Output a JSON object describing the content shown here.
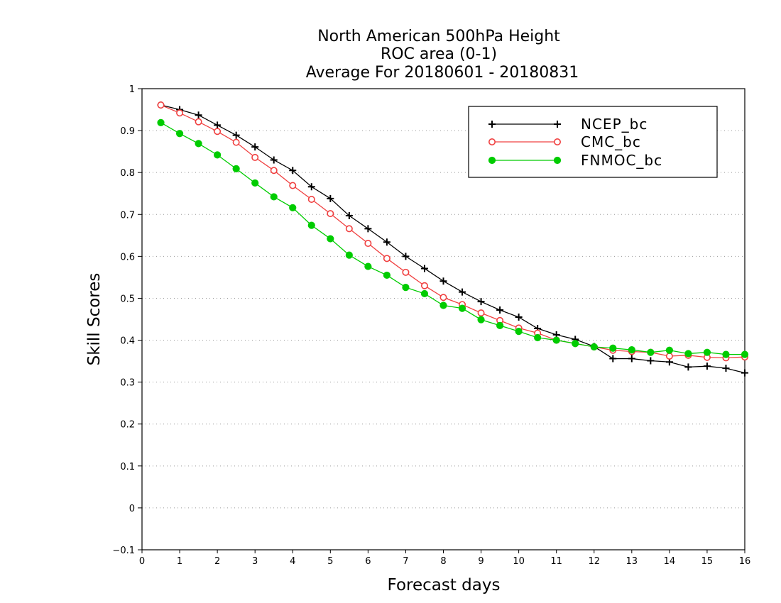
{
  "chart_data": {
    "type": "line",
    "title": [
      "North American 500hPa Height",
      "ROC area (0-1)",
      "Average For 20180601 - 20180831"
    ],
    "xlabel": "Forecast days",
    "ylabel": "Skill Scores",
    "xlim": [
      0,
      16
    ],
    "ylim": [
      -0.1,
      1
    ],
    "xticks": [
      0,
      1,
      2,
      3,
      4,
      5,
      6,
      7,
      8,
      9,
      10,
      11,
      12,
      13,
      14,
      15,
      16
    ],
    "xtick_labels": [
      "0",
      "1",
      "2",
      "3",
      "4",
      "5",
      "6",
      "7",
      "8",
      "9",
      "10",
      "11",
      "12",
      "13",
      "14",
      "15",
      "16"
    ],
    "yticks": [
      -0.1,
      0,
      0.1,
      0.2,
      0.3,
      0.4,
      0.5,
      0.6,
      0.7,
      0.8,
      0.9,
      1
    ],
    "ytick_labels": [
      "−0.1",
      "0",
      "0.1",
      "0.2",
      "0.3",
      "0.4",
      "0.5",
      "0.6",
      "0.7",
      "0.8",
      "0.9",
      "1"
    ],
    "grid": "horizontal dotted",
    "legend_position": "top-right",
    "x": [
      0.5,
      1,
      1.5,
      2,
      2.5,
      3,
      3.5,
      4,
      4.5,
      5,
      5.5,
      6,
      6.5,
      7,
      7.5,
      8,
      8.5,
      9,
      9.5,
      10,
      10.5,
      11,
      11.5,
      12,
      12.5,
      13,
      13.5,
      14,
      14.5,
      15,
      15.5,
      16
    ],
    "series": [
      {
        "name": "NCEP_bc",
        "color": "#000000",
        "marker": "plus",
        "values": [
          0.961,
          0.95,
          0.937,
          0.913,
          0.889,
          0.861,
          0.83,
          0.805,
          0.766,
          0.738,
          0.697,
          0.666,
          0.634,
          0.6,
          0.571,
          0.541,
          0.515,
          0.492,
          0.472,
          0.455,
          0.428,
          0.413,
          0.402,
          0.385,
          0.356,
          0.356,
          0.351,
          0.348,
          0.336,
          0.338,
          0.333,
          0.322
        ]
      },
      {
        "name": "CMC_bc",
        "color": "#f04040",
        "marker": "open-circle",
        "values": [
          0.961,
          0.942,
          0.921,
          0.898,
          0.872,
          0.836,
          0.805,
          0.769,
          0.736,
          0.702,
          0.666,
          0.631,
          0.595,
          0.562,
          0.53,
          0.502,
          0.485,
          0.465,
          0.447,
          0.429,
          0.417,
          0.4,
          0.392,
          0.384,
          0.376,
          0.373,
          0.371,
          0.362,
          0.364,
          0.359,
          0.358,
          0.36
        ]
      },
      {
        "name": "FNMOC_bc",
        "color": "#00cc00",
        "marker": "filled-circle",
        "values": [
          0.919,
          0.893,
          0.869,
          0.842,
          0.809,
          0.775,
          0.742,
          0.716,
          0.674,
          0.642,
          0.603,
          0.576,
          0.555,
          0.526,
          0.511,
          0.483,
          0.476,
          0.449,
          0.435,
          0.421,
          0.406,
          0.4,
          0.392,
          0.384,
          0.381,
          0.377,
          0.371,
          0.376,
          0.368,
          0.371,
          0.366,
          0.366
        ]
      }
    ]
  }
}
